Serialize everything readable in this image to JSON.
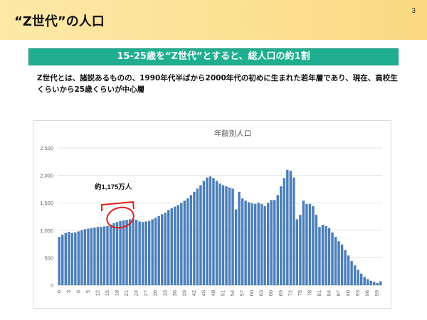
{
  "slide": {
    "title": "“Z世代”の人口",
    "page_number": "3",
    "banner": "15-25歳を“Z世代”とすると、総人口の約1割",
    "body": "Z世代とは、諸説あるものの、1990年代半ばから2000年代の初めに生まれた若年層であり、現在、高校生くらいから25歳くらいが中心層"
  },
  "colors": {
    "header": "#fbd982",
    "banner": "#1fae8f",
    "bar": "#4a7ebb",
    "annotation": "#e02020"
  },
  "chart_data": {
    "type": "bar",
    "title": "年齢別人口",
    "annotation": "約1,175万人",
    "x_tick_labels": [
      "0",
      "3",
      "6",
      "9",
      "12",
      "15",
      "18",
      "21",
      "24",
      "27",
      "30",
      "33",
      "36",
      "39",
      "42",
      "45",
      "48",
      "51",
      "54",
      "57",
      "60",
      "63",
      "66",
      "69",
      "72",
      "75",
      "78",
      "81",
      "84",
      "87",
      "90",
      "93",
      "96",
      "99"
    ],
    "y_tick_labels": [
      "0",
      "500",
      "1,000",
      "1,500",
      "2,000",
      "2,500"
    ],
    "ylim": [
      0,
      2500
    ],
    "grid": true,
    "x": [
      0,
      1,
      2,
      3,
      4,
      5,
      6,
      7,
      8,
      9,
      10,
      11,
      12,
      13,
      14,
      15,
      16,
      17,
      18,
      19,
      20,
      21,
      22,
      23,
      24,
      25,
      26,
      27,
      28,
      29,
      30,
      31,
      32,
      33,
      34,
      35,
      36,
      37,
      38,
      39,
      40,
      41,
      42,
      43,
      44,
      45,
      46,
      47,
      48,
      49,
      50,
      51,
      52,
      53,
      54,
      55,
      56,
      57,
      58,
      59,
      60,
      61,
      62,
      63,
      64,
      65,
      66,
      67,
      68,
      69,
      70,
      71,
      72,
      73,
      74,
      75,
      76,
      77,
      78,
      79,
      80,
      81,
      82,
      83,
      84,
      85,
      86,
      87,
      88,
      89,
      90,
      91,
      92,
      93,
      94,
      95,
      96,
      97,
      98,
      99,
      100
    ],
    "values": [
      880,
      920,
      950,
      970,
      950,
      960,
      980,
      1000,
      1020,
      1030,
      1040,
      1050,
      1060,
      1060,
      1070,
      1080,
      1100,
      1130,
      1150,
      1170,
      1180,
      1190,
      1200,
      1210,
      1190,
      1160,
      1150,
      1160,
      1170,
      1200,
      1230,
      1260,
      1290,
      1320,
      1370,
      1400,
      1430,
      1460,
      1500,
      1540,
      1580,
      1640,
      1700,
      1760,
      1820,
      1900,
      1960,
      1980,
      1950,
      1900,
      1850,
      1820,
      1800,
      1780,
      1760,
      1380,
      1700,
      1580,
      1540,
      1510,
      1490,
      1480,
      1500,
      1480,
      1440,
      1500,
      1550,
      1550,
      1640,
      1800,
      1950,
      2100,
      2080,
      1960,
      1200,
      1280,
      1540,
      1480,
      1480,
      1440,
      1280,
      1060,
      1100,
      1080,
      1040,
      960,
      880,
      800,
      740,
      640,
      540,
      440,
      360,
      280,
      210,
      150,
      110,
      80,
      60,
      40,
      70
    ]
  }
}
